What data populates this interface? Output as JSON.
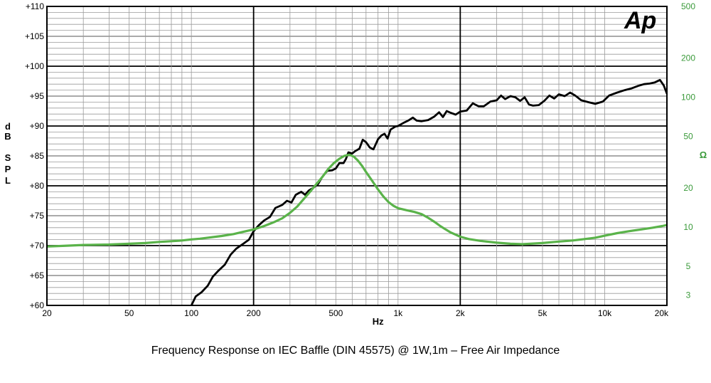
{
  "chart_data": {
    "type": "line",
    "caption": "Frequency Response on IEC Baffle (DIN 45575)  @ 1W,1m – Free  Air Impedance",
    "logo": "Ap",
    "xlabel": "Hz",
    "ylabel_left": [
      "d",
      "B",
      "",
      "S",
      "P",
      "L"
    ],
    "ylabel_right": "Ω",
    "x_scale": "log",
    "xlim": [
      20,
      20000
    ],
    "x_ticks": [
      {
        "value": 20,
        "label": "20"
      },
      {
        "value": 50,
        "label": "50"
      },
      {
        "value": 100,
        "label": "100"
      },
      {
        "value": 200,
        "label": "200"
      },
      {
        "value": 500,
        "label": "500"
      },
      {
        "value": 1000,
        "label": "1k"
      },
      {
        "value": 2000,
        "label": "2k"
      },
      {
        "value": 5000,
        "label": "5k"
      },
      {
        "value": 10000,
        "label": "10k"
      },
      {
        "value": 20000,
        "label": "20k"
      }
    ],
    "ylim_left": [
      60,
      110
    ],
    "y_ticks_left": [
      {
        "value": 110,
        "label": "+110"
      },
      {
        "value": 105,
        "label": "+105"
      },
      {
        "value": 100,
        "label": "+100"
      },
      {
        "value": 95,
        "label": "+95"
      },
      {
        "value": 90,
        "label": "+90"
      },
      {
        "value": 85,
        "label": "+85"
      },
      {
        "value": 80,
        "label": "+80"
      },
      {
        "value": 75,
        "label": "+75"
      },
      {
        "value": 70,
        "label": "+70"
      },
      {
        "value": 65,
        "label": "+65"
      },
      {
        "value": 60,
        "label": "+60"
      }
    ],
    "y_scale_right": "log",
    "ylim_right": [
      2.5,
      500
    ],
    "y_ticks_right": [
      {
        "value": 500,
        "label": "500"
      },
      {
        "value": 200,
        "label": "200"
      },
      {
        "value": 100,
        "label": "100"
      },
      {
        "value": 50,
        "label": "50"
      },
      {
        "value": 20,
        "label": "20"
      },
      {
        "value": 10,
        "label": "10"
      },
      {
        "value": 5,
        "label": "5"
      },
      {
        "value": 3,
        "label": "3"
      }
    ],
    "grid": true,
    "series": [
      {
        "axis": "left",
        "color": "#000000",
        "points": [
          [
            100,
            60
          ],
          [
            105,
            61.5
          ],
          [
            112,
            62.2
          ],
          [
            120,
            63.3
          ],
          [
            127,
            64.8
          ],
          [
            135,
            65.8
          ],
          [
            145,
            66.8
          ],
          [
            155,
            68.5
          ],
          [
            165,
            69.5
          ],
          [
            178,
            70.3
          ],
          [
            190,
            71
          ],
          [
            200,
            72.4
          ],
          [
            212,
            73.4
          ],
          [
            225,
            74.2
          ],
          [
            240,
            74.8
          ],
          [
            255,
            76.3
          ],
          [
            275,
            76.8
          ],
          [
            290,
            77.5
          ],
          [
            305,
            77.2
          ],
          [
            320,
            78.5
          ],
          [
            340,
            79
          ],
          [
            355,
            78.5
          ],
          [
            370,
            79.2
          ],
          [
            390,
            79.7
          ],
          [
            410,
            80.3
          ],
          [
            430,
            81.5
          ],
          [
            455,
            82.5
          ],
          [
            480,
            82.6
          ],
          [
            500,
            82.9
          ],
          [
            520,
            83.8
          ],
          [
            545,
            83.8
          ],
          [
            560,
            84.5
          ],
          [
            575,
            85.6
          ],
          [
            600,
            85.4
          ],
          [
            620,
            85.8
          ],
          [
            650,
            86.2
          ],
          [
            675,
            87.7
          ],
          [
            700,
            87.3
          ],
          [
            730,
            86.4
          ],
          [
            760,
            86.1
          ],
          [
            800,
            87.8
          ],
          [
            830,
            88.4
          ],
          [
            860,
            88.7
          ],
          [
            890,
            87.9
          ],
          [
            920,
            89.4
          ],
          [
            970,
            89.9
          ],
          [
            1000,
            90
          ],
          [
            1060,
            90.5
          ],
          [
            1120,
            90.9
          ],
          [
            1180,
            91.4
          ],
          [
            1230,
            90.9
          ],
          [
            1300,
            90.8
          ],
          [
            1400,
            91.0
          ],
          [
            1500,
            91.6
          ],
          [
            1580,
            92.3
          ],
          [
            1650,
            91.5
          ],
          [
            1720,
            92.5
          ],
          [
            1800,
            92.2
          ],
          [
            1900,
            91.9
          ],
          [
            2000,
            92.4
          ],
          [
            2150,
            92.6
          ],
          [
            2300,
            93.8
          ],
          [
            2450,
            93.3
          ],
          [
            2600,
            93.3
          ],
          [
            2800,
            94.1
          ],
          [
            3000,
            94.3
          ],
          [
            3150,
            95.1
          ],
          [
            3300,
            94.5
          ],
          [
            3500,
            95
          ],
          [
            3700,
            94.8
          ],
          [
            3900,
            94.2
          ],
          [
            4100,
            94.8
          ],
          [
            4300,
            93.6
          ],
          [
            4500,
            93.4
          ],
          [
            4800,
            93.5
          ],
          [
            5100,
            94.2
          ],
          [
            5400,
            95.1
          ],
          [
            5700,
            94.6
          ],
          [
            6000,
            95.3
          ],
          [
            6400,
            95
          ],
          [
            6800,
            95.6
          ],
          [
            7200,
            95.1
          ],
          [
            7700,
            94.3
          ],
          [
            8300,
            94
          ],
          [
            9000,
            93.7
          ],
          [
            9800,
            94.1
          ],
          [
            10500,
            95.1
          ],
          [
            11500,
            95.6
          ],
          [
            12500,
            96
          ],
          [
            13500,
            96.3
          ],
          [
            14500,
            96.7
          ],
          [
            15500,
            97
          ],
          [
            16500,
            97.1
          ],
          [
            17500,
            97.3
          ],
          [
            18500,
            97.7
          ],
          [
            19300,
            96.8
          ],
          [
            20000,
            95.4
          ]
        ]
      },
      {
        "axis": "right",
        "color": "#5ab34a",
        "points": [
          [
            20,
            7.1
          ],
          [
            25,
            7.2
          ],
          [
            30,
            7.3
          ],
          [
            40,
            7.35
          ],
          [
            50,
            7.45
          ],
          [
            60,
            7.55
          ],
          [
            70,
            7.7
          ],
          [
            80,
            7.8
          ],
          [
            90,
            7.9
          ],
          [
            100,
            8.05
          ],
          [
            110,
            8.15
          ],
          [
            120,
            8.3
          ],
          [
            140,
            8.55
          ],
          [
            160,
            8.85
          ],
          [
            180,
            9.25
          ],
          [
            200,
            9.6
          ],
          [
            225,
            10.2
          ],
          [
            250,
            10.9
          ],
          [
            275,
            11.7
          ],
          [
            300,
            12.9
          ],
          [
            325,
            14.4
          ],
          [
            350,
            16.5
          ],
          [
            375,
            18.7
          ],
          [
            400,
            21.2
          ],
          [
            430,
            24.3
          ],
          [
            460,
            28.1
          ],
          [
            490,
            31.2
          ],
          [
            520,
            33.6
          ],
          [
            550,
            35.4
          ],
          [
            580,
            36.1
          ],
          [
            610,
            35
          ],
          [
            640,
            32.5
          ],
          [
            670,
            29.6
          ],
          [
            700,
            26.6
          ],
          [
            750,
            22.7
          ],
          [
            800,
            19.5
          ],
          [
            850,
            17.2
          ],
          [
            900,
            15.6
          ],
          [
            950,
            14.6
          ],
          [
            1000,
            14.0
          ],
          [
            1100,
            13.5
          ],
          [
            1200,
            13.1
          ],
          [
            1300,
            12.6
          ],
          [
            1400,
            11.8
          ],
          [
            1500,
            11.0
          ],
          [
            1600,
            10.2
          ],
          [
            1700,
            9.6
          ],
          [
            1800,
            9.1
          ],
          [
            2000,
            8.45
          ],
          [
            2200,
            8.1
          ],
          [
            2500,
            7.85
          ],
          [
            3000,
            7.6
          ],
          [
            3500,
            7.45
          ],
          [
            4000,
            7.4
          ],
          [
            5000,
            7.55
          ],
          [
            6000,
            7.75
          ],
          [
            7000,
            7.9
          ],
          [
            8000,
            8.1
          ],
          [
            9000,
            8.3
          ],
          [
            10000,
            8.6
          ],
          [
            11500,
            9.0
          ],
          [
            13000,
            9.3
          ],
          [
            15000,
            9.6
          ],
          [
            17000,
            9.9
          ],
          [
            19000,
            10.2
          ],
          [
            20000,
            10.4
          ]
        ]
      }
    ],
    "colors": {
      "grid_major": "#000000",
      "grid_minor": "#9a9a9a",
      "impedance": "#5ab34a",
      "spl": "#000000"
    }
  }
}
